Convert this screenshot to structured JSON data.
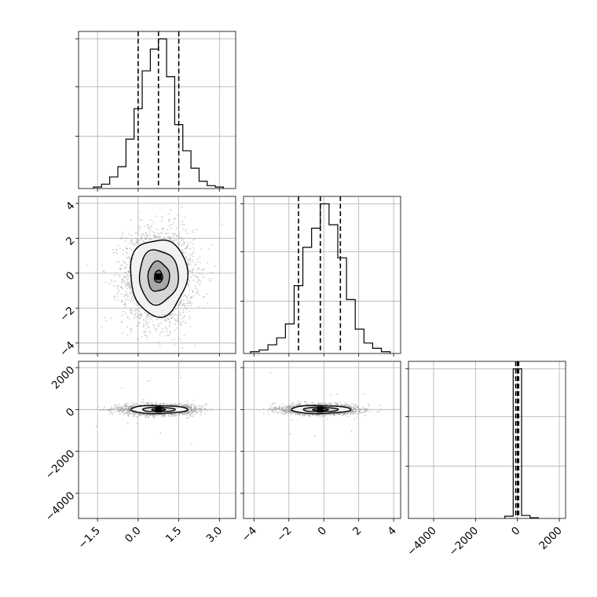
{
  "chart_data": {
    "type": "corner",
    "panels": [
      {
        "id": "hist-p0",
        "type": "histogram",
        "xlim": [
          -2.2,
          3.6
        ],
        "bins": [
          -1.65,
          -1.35,
          -1.05,
          -0.75,
          -0.45,
          -0.15,
          0.15,
          0.45,
          0.75,
          1.05,
          1.35,
          1.65,
          1.95,
          2.25,
          2.55,
          2.85,
          3.15
        ],
        "counts": [
          1,
          3,
          8,
          15,
          34,
          55,
          81,
          96,
          103,
          77,
          44,
          26,
          14,
          5,
          2,
          1
        ],
        "quantiles": [
          0.0,
          0.75,
          1.5
        ],
        "grid": true,
        "y_tick_labels": false
      },
      {
        "id": "scatter-p0-p1",
        "type": "scatter_density",
        "xlim": [
          -2.2,
          3.6
        ],
        "ylim": [
          -4.6,
          4.4
        ],
        "center": [
          0.75,
          -0.2
        ],
        "contours": [
          {
            "level": 1,
            "rx": 0.15,
            "ry": 0.35
          },
          {
            "level": 2,
            "rx": 0.4,
            "ry": 0.85
          },
          {
            "level": 3,
            "rx": 0.72,
            "ry": 1.55
          },
          {
            "level": 4,
            "rx": 1.05,
            "ry": 2.2
          }
        ],
        "y_tick_labels": [
          "4",
          "2",
          "0",
          "−2",
          "−4"
        ],
        "y_ticks": [
          4,
          2,
          0,
          -2,
          -4
        ],
        "grid": true
      },
      {
        "id": "hist-p1",
        "type": "histogram",
        "xlim": [
          -4.6,
          4.4
        ],
        "bins": [
          -4.2,
          -3.7,
          -3.2,
          -2.7,
          -2.2,
          -1.7,
          -1.2,
          -0.7,
          -0.2,
          0.3,
          0.8,
          1.3,
          1.8,
          2.3,
          2.8,
          3.3,
          3.8
        ],
        "counts": [
          1,
          2,
          5,
          9,
          17,
          39,
          61,
          72,
          86,
          74,
          55,
          31,
          14,
          6,
          3,
          1
        ],
        "quantiles": [
          -1.45,
          -0.2,
          0.95
        ],
        "grid": true,
        "y_tick_labels": false
      },
      {
        "id": "scatter-p0-p2",
        "type": "scatter_density",
        "xlim": [
          -2.2,
          3.6
        ],
        "ylim": [
          -5200,
          2300
        ],
        "center": [
          0.75,
          0
        ],
        "contours": [
          {
            "level": 1,
            "rx": 0.25,
            "ry": 50
          },
          {
            "level": 2,
            "rx": 0.6,
            "ry": 110
          },
          {
            "level": 3,
            "rx": 1.05,
            "ry": 190
          }
        ],
        "y_tick_labels": [
          "2000",
          "0",
          "−2000",
          "−4000"
        ],
        "y_ticks": [
          2000,
          0,
          -2000,
          -4000
        ],
        "x_tick_labels": [
          "−1.5",
          "0.0",
          "1.5",
          "3.0"
        ],
        "x_ticks": [
          -1.5,
          0.0,
          1.5,
          3.0
        ],
        "grid": true
      },
      {
        "id": "scatter-p1-p2",
        "type": "scatter_density",
        "xlim": [
          -4.6,
          4.4
        ],
        "ylim": [
          -5200,
          2300
        ],
        "center": [
          -0.2,
          0
        ],
        "contours": [
          {
            "level": 1,
            "rx": 0.45,
            "ry": 50
          },
          {
            "level": 2,
            "rx": 1.0,
            "ry": 110
          },
          {
            "level": 3,
            "rx": 1.7,
            "ry": 190
          }
        ],
        "x_tick_labels": [
          "−4",
          "−2",
          "0",
          "2",
          "4"
        ],
        "x_ticks": [
          -4,
          -2,
          0,
          2,
          4
        ],
        "grid": true
      },
      {
        "id": "hist-p2",
        "type": "histogram",
        "xlim": [
          -5200,
          2300
        ],
        "bins": [
          -600,
          -200,
          200,
          600,
          1000
        ],
        "counts": [
          3,
          200,
          4,
          1
        ],
        "quantiles": [
          -80,
          0,
          60
        ],
        "x_tick_labels": [
          "−4000",
          "−2000",
          "0",
          "2000"
        ],
        "x_ticks": [
          -4000,
          -2000,
          0,
          2000
        ],
        "grid": true,
        "y_tick_labels": false
      }
    ],
    "xlabel": "",
    "ylabel": "",
    "title": ""
  },
  "colors": {
    "background": "#ffffff",
    "grid": "#b0b0b0",
    "line": "#000000",
    "scatter_points": "#b0b0b0"
  }
}
